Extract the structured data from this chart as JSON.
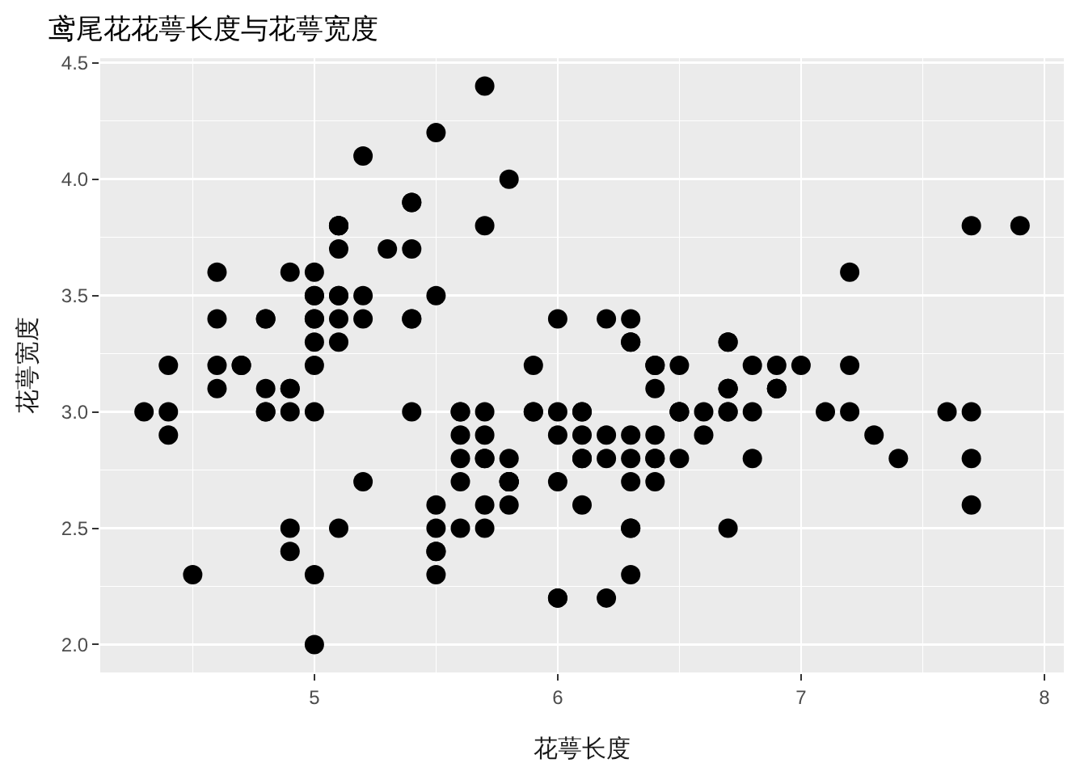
{
  "chart_data": {
    "type": "scatter",
    "title": "鸢尾花花萼长度与花萼宽度",
    "xlabel": "花萼长度",
    "ylabel": "花萼宽度",
    "x": [
      5.1,
      4.9,
      4.7,
      4.6,
      5.0,
      5.4,
      4.6,
      5.0,
      4.4,
      4.9,
      5.4,
      4.8,
      4.8,
      4.3,
      5.8,
      5.7,
      5.4,
      5.1,
      5.7,
      5.1,
      5.4,
      5.1,
      4.6,
      5.1,
      4.8,
      5.0,
      5.0,
      5.2,
      5.2,
      4.7,
      4.8,
      5.4,
      5.2,
      5.5,
      4.9,
      5.0,
      5.5,
      4.9,
      4.4,
      5.1,
      5.0,
      4.5,
      4.4,
      5.0,
      5.1,
      4.8,
      5.1,
      4.6,
      5.3,
      5.0,
      7.0,
      6.4,
      6.9,
      5.5,
      6.5,
      5.7,
      6.3,
      4.9,
      6.6,
      5.2,
      5.0,
      5.9,
      6.0,
      6.1,
      5.6,
      6.7,
      5.6,
      5.8,
      6.2,
      5.6,
      5.9,
      6.1,
      6.3,
      6.1,
      6.4,
      6.6,
      6.8,
      6.7,
      6.0,
      5.7,
      5.5,
      5.5,
      5.8,
      6.0,
      5.4,
      6.0,
      6.7,
      6.3,
      5.6,
      5.5,
      5.5,
      6.1,
      5.8,
      5.0,
      5.6,
      5.7,
      5.7,
      6.2,
      5.1,
      5.7,
      6.3,
      5.8,
      7.1,
      6.3,
      6.5,
      7.6,
      4.9,
      7.3,
      6.7,
      7.2,
      6.5,
      6.4,
      6.8,
      5.7,
      5.8,
      6.4,
      6.5,
      7.7,
      7.7,
      6.0,
      6.9,
      5.6,
      7.7,
      6.3,
      6.7,
      7.2,
      6.2,
      6.1,
      6.4,
      7.2,
      7.4,
      7.9,
      6.4,
      6.3,
      6.1,
      7.7,
      6.3,
      6.4,
      6.0,
      6.9,
      6.7,
      6.9,
      5.8,
      6.8,
      6.7,
      6.7,
      6.3,
      6.5,
      6.2,
      5.9
    ],
    "values": [
      3.5,
      3.0,
      3.2,
      3.1,
      3.6,
      3.9,
      3.4,
      3.4,
      2.9,
      3.1,
      3.7,
      3.4,
      3.0,
      3.0,
      4.0,
      4.4,
      3.9,
      3.5,
      3.8,
      3.8,
      3.4,
      3.7,
      3.6,
      3.3,
      3.4,
      3.0,
      3.4,
      3.5,
      3.4,
      3.2,
      3.1,
      3.4,
      4.1,
      4.2,
      3.1,
      3.2,
      3.5,
      3.6,
      3.0,
      3.4,
      3.5,
      2.3,
      3.2,
      3.5,
      3.8,
      3.0,
      3.8,
      3.2,
      3.7,
      3.3,
      3.2,
      3.2,
      3.1,
      2.3,
      2.8,
      2.8,
      3.3,
      2.4,
      2.9,
      2.7,
      2.0,
      3.0,
      2.2,
      2.9,
      2.9,
      3.1,
      3.0,
      2.7,
      2.2,
      2.5,
      3.2,
      2.8,
      2.5,
      2.8,
      2.9,
      3.0,
      2.8,
      3.0,
      2.9,
      2.6,
      2.4,
      2.4,
      2.7,
      2.7,
      3.0,
      3.4,
      3.1,
      2.3,
      3.0,
      2.5,
      2.6,
      3.0,
      2.6,
      2.3,
      2.7,
      3.0,
      2.9,
      2.9,
      2.5,
      2.8,
      3.3,
      2.7,
      3.0,
      2.9,
      3.0,
      3.0,
      2.5,
      2.9,
      2.5,
      3.6,
      3.2,
      2.7,
      3.0,
      2.5,
      2.8,
      3.2,
      3.0,
      3.8,
      2.6,
      2.2,
      3.2,
      2.8,
      2.8,
      2.7,
      3.3,
      3.2,
      2.8,
      3.0,
      2.8,
      3.0,
      2.8,
      3.8,
      2.8,
      2.8,
      2.6,
      3.0,
      3.4,
      3.1,
      3.0,
      3.1,
      3.1,
      3.1,
      2.7,
      3.2,
      3.3,
      3.0,
      2.5,
      3.0,
      3.4,
      3.0
    ],
    "color": "#000000",
    "marker": "circle",
    "xlim": [
      4.12,
      8.08
    ],
    "xticks": [
      5,
      6,
      7,
      8
    ],
    "ylim": [
      1.88,
      4.52
    ],
    "yticks": [
      {
        "value": 2,
        "label": "2.0"
      },
      {
        "value": 2.5,
        "label": "2.5"
      },
      {
        "value": 3,
        "label": "3.0"
      },
      {
        "value": 3.5,
        "label": "3.5"
      },
      {
        "value": 4,
        "label": "4.0"
      },
      {
        "value": 4.5,
        "label": "4.5"
      }
    ],
    "grid": true
  }
}
